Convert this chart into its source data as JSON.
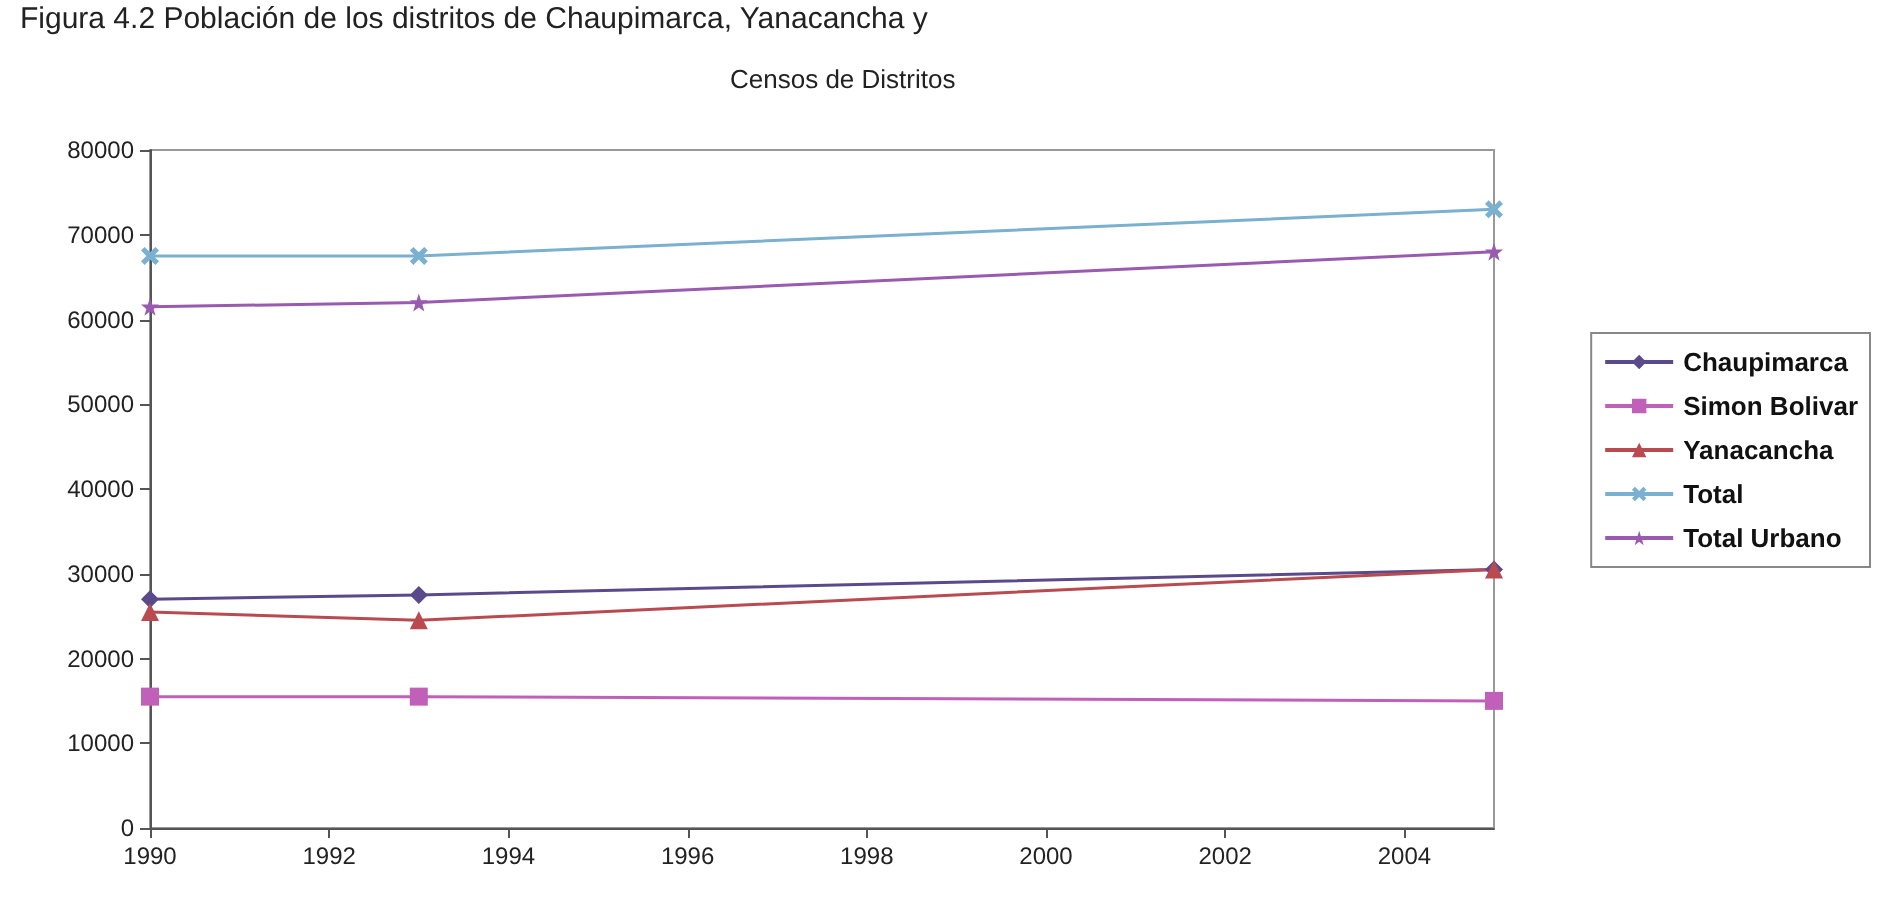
{
  "chart_data": {
    "type": "line",
    "title": "Censos de Distritos",
    "annotations": [
      "Figura 4.2 Población de los distritos de Chaupimarca, Yanacancha y"
    ],
    "x": [
      1990,
      1993,
      2005
    ],
    "series": [
      {
        "name": "Chaupimarca",
        "color": "#5a4a8c",
        "marker": "diamond",
        "values": [
          27000,
          27500,
          30500
        ]
      },
      {
        "name": "Simon Bolivar",
        "color": "#c060b8",
        "marker": "square",
        "values": [
          15500,
          15500,
          15000
        ]
      },
      {
        "name": "Yanacancha",
        "color": "#b84a50",
        "marker": "triangle",
        "values": [
          25500,
          24500,
          30500
        ]
      },
      {
        "name": "Total",
        "color": "#7ab0d0",
        "marker": "cross",
        "values": [
          67500,
          67500,
          73000
        ]
      },
      {
        "name": "Total Urbano",
        "color": "#9a5ab0",
        "marker": "star",
        "values": [
          61500,
          62000,
          68000
        ]
      }
    ],
    "xlim": [
      1990,
      2005
    ],
    "xticks": [
      1990,
      1992,
      1994,
      1996,
      1998,
      2000,
      2002,
      2004
    ],
    "ylim": [
      0,
      80000
    ],
    "yticks": [
      0,
      10000,
      20000,
      30000,
      40000,
      50000,
      60000,
      70000,
      80000
    ],
    "legend": "right",
    "line_style": "solid"
  }
}
